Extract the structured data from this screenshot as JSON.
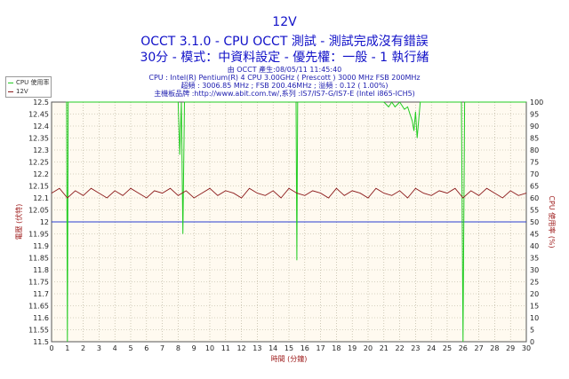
{
  "header": {
    "title": "12V",
    "subtitle1": "OCCT 3.1.0 - CPU OCCT 測試 - 測試完成沒有錯誤",
    "subtitle2": "30分 - 模式：中資料設定 - 優先權：一般 - 1 執行緒"
  },
  "info_lines": [
    "由 OCCT 產生:08/05/11 11:45:40",
    "CPU : Intel(R) Pentium(R) 4 CPU 3.00GHz ( Prescott ) 3000 MHz FSB 200MHz",
    "超頻 : 3006.85 MHz ; FSB 200.46MHz ; 溢頻 : 0.12 ( 1.00%)",
    "主機板品牌 :http://www.abit.com.tw/,系列 :IS7/IS7-G/IS7-E (Intel i865-ICH5)"
  ],
  "legend": [
    "CPU 使用率",
    "12V"
  ],
  "colors": {
    "cpu": "#22cc22",
    "v12": "#8b1a1a",
    "ref": "#2a3fd0",
    "bg": "#fffaf0",
    "grid": "#b0a890"
  },
  "chart_data": {
    "type": "line",
    "xlabel": "時間 (分鐘)",
    "ylabel_left": "電壓 (伏特)",
    "ylabel_right": "CPU 使用率 (%)",
    "xlim": [
      0,
      30
    ],
    "ylim_left": [
      11.5,
      12.5
    ],
    "ylim_right": [
      0,
      100
    ],
    "x_ticks": [
      "0",
      "1",
      "2",
      "3",
      "4",
      "5",
      "6",
      "7",
      "8",
      "9",
      "10",
      "11",
      "12",
      "13",
      "14",
      "15",
      "16",
      "17",
      "18",
      "19",
      "20",
      "21",
      "22",
      "23",
      "24",
      "25",
      "26",
      "27",
      "28",
      "29",
      "30"
    ],
    "y_ticks_left": [
      "11.5",
      "11.55",
      "11.6",
      "11.65",
      "11.7",
      "11.75",
      "11.8",
      "11.85",
      "11.9",
      "11.95",
      "12",
      "12.05",
      "12.1",
      "12.15",
      "12.2",
      "12.25",
      "12.3",
      "12.35",
      "12.4",
      "12.45",
      "12.5"
    ],
    "y_ticks_right": [
      "0",
      "5",
      "10",
      "15",
      "20",
      "25",
      "30",
      "35",
      "40",
      "45",
      "50",
      "55",
      "60",
      "65",
      "70",
      "75",
      "80",
      "85",
      "90",
      "95",
      "100"
    ],
    "reference_line": 12.0,
    "grid": true,
    "legend_position": "top-left",
    "series": [
      {
        "name": "12V",
        "x": [
          0,
          0.5,
          1,
          1.5,
          2,
          2.5,
          3,
          3.5,
          4,
          4.5,
          5,
          5.5,
          6,
          6.5,
          7,
          7.5,
          8,
          8.5,
          9,
          9.5,
          10,
          10.5,
          11,
          11.5,
          12,
          12.5,
          13,
          13.5,
          14,
          14.5,
          15,
          15.5,
          16,
          16.5,
          17,
          17.5,
          18,
          18.5,
          19,
          19.5,
          20,
          20.5,
          21,
          21.5,
          22,
          22.5,
          23,
          23.5,
          24,
          24.5,
          25,
          25.5,
          26,
          26.5,
          27,
          27.5,
          28,
          28.5,
          29,
          29.5,
          30
        ],
        "values": [
          12.12,
          12.14,
          12.1,
          12.13,
          12.11,
          12.14,
          12.12,
          12.1,
          12.13,
          12.11,
          12.14,
          12.12,
          12.1,
          12.13,
          12.12,
          12.14,
          12.11,
          12.13,
          12.1,
          12.12,
          12.14,
          12.11,
          12.13,
          12.12,
          12.1,
          12.14,
          12.12,
          12.11,
          12.13,
          12.1,
          12.14,
          12.12,
          12.11,
          12.13,
          12.12,
          12.1,
          12.14,
          12.11,
          12.13,
          12.12,
          12.1,
          12.14,
          12.12,
          12.11,
          12.13,
          12.1,
          12.14,
          12.12,
          12.11,
          12.13,
          12.12,
          12.14,
          12.1,
          12.13,
          12.11,
          12.14,
          12.12,
          12.1,
          12.13,
          12.11,
          12.12
        ]
      },
      {
        "name": "CPU 使用率",
        "x": [
          0.9,
          0.95,
          1.0,
          1.05,
          1.1,
          1.5,
          2,
          3,
          4,
          5,
          6,
          7,
          8,
          8.1,
          8.2,
          8.3,
          8.4,
          8.5,
          9,
          10,
          11,
          12,
          13,
          14,
          15,
          15.45,
          15.5,
          15.55,
          15.6,
          16,
          17,
          18,
          19,
          20,
          21,
          21.3,
          21.5,
          21.7,
          22,
          22.3,
          22.5,
          22.8,
          22.9,
          23,
          23.1,
          23.3,
          24,
          25,
          25.9,
          26,
          26.1,
          27,
          28,
          29,
          30
        ],
        "values": [
          100,
          100,
          0,
          100,
          100,
          100,
          100,
          100,
          100,
          100,
          100,
          100,
          100,
          78,
          100,
          45,
          100,
          100,
          100,
          100,
          100,
          100,
          100,
          100,
          100,
          100,
          34,
          100,
          100,
          100,
          100,
          100,
          100,
          100,
          100,
          98,
          100,
          98,
          100,
          97,
          98,
          92,
          88,
          96,
          85,
          100,
          100,
          100,
          100,
          0,
          100,
          100,
          100,
          100,
          100
        ]
      }
    ]
  }
}
